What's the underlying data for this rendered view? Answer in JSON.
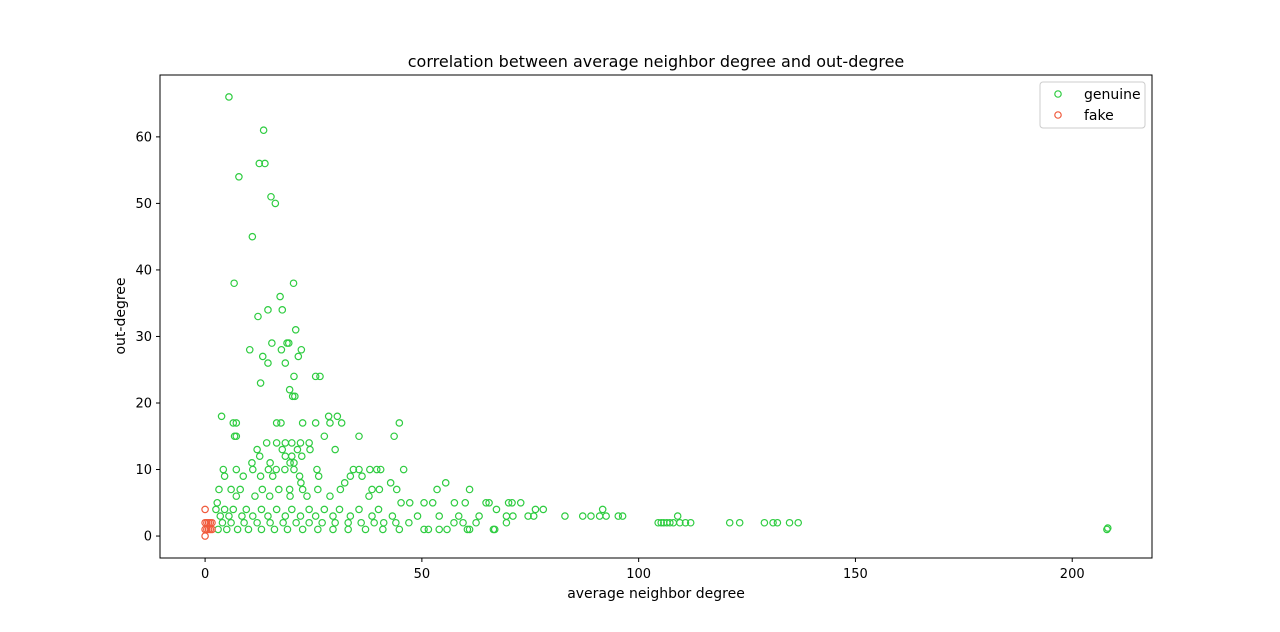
{
  "chart_data": {
    "type": "scatter",
    "title": "correlation between average neighbor degree and out-degree",
    "xlabel": "average neighbor degree",
    "ylabel": "out-degree",
    "xlim": [
      -10.4,
      218.4
    ],
    "ylim": [
      -3.3,
      69.3
    ],
    "xticks": [
      0,
      50,
      100,
      150,
      200
    ],
    "yticks": [
      0,
      10,
      20,
      30,
      40,
      50,
      60
    ],
    "grid": false,
    "legend_position": "top-right",
    "marker": "hollow-circle",
    "series": [
      {
        "name": "genuine",
        "color": "#2ecc40",
        "points": [
          [
            5.5,
            66
          ],
          [
            13.5,
            61
          ],
          [
            12.5,
            56
          ],
          [
            13.8,
            56
          ],
          [
            7.8,
            54
          ],
          [
            15.2,
            51
          ],
          [
            16.2,
            50
          ],
          [
            10.9,
            45
          ],
          [
            6.7,
            38
          ],
          [
            20.4,
            38
          ],
          [
            17.3,
            36
          ],
          [
            14.5,
            34
          ],
          [
            17.8,
            34
          ],
          [
            12.2,
            33
          ],
          [
            20.9,
            31
          ],
          [
            15.4,
            29
          ],
          [
            18.9,
            29
          ],
          [
            19.3,
            29
          ],
          [
            10.3,
            28
          ],
          [
            17.6,
            28
          ],
          [
            22.2,
            28
          ],
          [
            13.3,
            27
          ],
          [
            21.5,
            27
          ],
          [
            14.5,
            26
          ],
          [
            18.5,
            26
          ],
          [
            25.5,
            24
          ],
          [
            26.5,
            24
          ],
          [
            20.5,
            24
          ],
          [
            12.8,
            23
          ],
          [
            19.5,
            22
          ],
          [
            20.2,
            21
          ],
          [
            20.7,
            21
          ],
          [
            3.8,
            18
          ],
          [
            28.5,
            18
          ],
          [
            30.5,
            18
          ],
          [
            6.5,
            17
          ],
          [
            7.2,
            17
          ],
          [
            16.5,
            17
          ],
          [
            17.5,
            17
          ],
          [
            22.5,
            17
          ],
          [
            25.5,
            17
          ],
          [
            28.8,
            17
          ],
          [
            31.5,
            17
          ],
          [
            44.8,
            17
          ],
          [
            35.5,
            15
          ],
          [
            43.6,
            15
          ],
          [
            14.2,
            14
          ],
          [
            16.5,
            14
          ],
          [
            18.5,
            14
          ],
          [
            20,
            14
          ],
          [
            22,
            14
          ],
          [
            24,
            14
          ],
          [
            6.8,
            15
          ],
          [
            7.2,
            15
          ],
          [
            27.5,
            15
          ],
          [
            12,
            13
          ],
          [
            17.8,
            13
          ],
          [
            21.3,
            13
          ],
          [
            24.2,
            13
          ],
          [
            30,
            13
          ],
          [
            12.6,
            12
          ],
          [
            18.5,
            12
          ],
          [
            20,
            12
          ],
          [
            22.3,
            12
          ],
          [
            10.8,
            11
          ],
          [
            15,
            11
          ],
          [
            19.6,
            11
          ],
          [
            20.5,
            11
          ],
          [
            4.2,
            10
          ],
          [
            7.2,
            10
          ],
          [
            11,
            10
          ],
          [
            14.6,
            10
          ],
          [
            16.4,
            10
          ],
          [
            18.4,
            10
          ],
          [
            20.5,
            10
          ],
          [
            25.8,
            10
          ],
          [
            34.2,
            10
          ],
          [
            35.5,
            10
          ],
          [
            38,
            10
          ],
          [
            39.6,
            10
          ],
          [
            40.5,
            10
          ],
          [
            45.8,
            10
          ],
          [
            4.5,
            9
          ],
          [
            8.8,
            9
          ],
          [
            12.8,
            9
          ],
          [
            15.6,
            9
          ],
          [
            21.8,
            9
          ],
          [
            26.2,
            9
          ],
          [
            33.5,
            9
          ],
          [
            36.2,
            9
          ],
          [
            3.2,
            7
          ],
          [
            6,
            7
          ],
          [
            8.1,
            7
          ],
          [
            13.2,
            7
          ],
          [
            17,
            7
          ],
          [
            19.5,
            7
          ],
          [
            22.5,
            7
          ],
          [
            26,
            7
          ],
          [
            31.2,
            7
          ],
          [
            38.5,
            7
          ],
          [
            40.2,
            7
          ],
          [
            44.2,
            7
          ],
          [
            53.5,
            7
          ],
          [
            61,
            7
          ],
          [
            32.2,
            8
          ],
          [
            42.8,
            8
          ],
          [
            55.5,
            8
          ],
          [
            22.1,
            8
          ],
          [
            2.8,
            5
          ],
          [
            7.2,
            6
          ],
          [
            11.5,
            6
          ],
          [
            14.9,
            6
          ],
          [
            19.6,
            6
          ],
          [
            23.5,
            6
          ],
          [
            28.8,
            6
          ],
          [
            37.8,
            6
          ],
          [
            45.2,
            5
          ],
          [
            47.2,
            5
          ],
          [
            50.5,
            5
          ],
          [
            52.5,
            5
          ],
          [
            57.5,
            5
          ],
          [
            60,
            5
          ],
          [
            64.8,
            5
          ],
          [
            65.5,
            5
          ],
          [
            67.2,
            4
          ],
          [
            70,
            5
          ],
          [
            70.8,
            5
          ],
          [
            72.8,
            5
          ],
          [
            76.2,
            4
          ],
          [
            78,
            4
          ],
          [
            91.7,
            4
          ],
          [
            2.5,
            4
          ],
          [
            4.5,
            4
          ],
          [
            6.5,
            4
          ],
          [
            9.5,
            4
          ],
          [
            13,
            4
          ],
          [
            16.5,
            4
          ],
          [
            20,
            4
          ],
          [
            24,
            4
          ],
          [
            27.5,
            4
          ],
          [
            31,
            4
          ],
          [
            35.5,
            4
          ],
          [
            40,
            4
          ],
          [
            43.2,
            3
          ],
          [
            49,
            3
          ],
          [
            54,
            3
          ],
          [
            58.5,
            3
          ],
          [
            63.2,
            3
          ],
          [
            69.5,
            3
          ],
          [
            71,
            3
          ],
          [
            74.5,
            3
          ],
          [
            75.8,
            3
          ],
          [
            83,
            3
          ],
          [
            87.1,
            3
          ],
          [
            89,
            3
          ],
          [
            91,
            3
          ],
          [
            92.5,
            3
          ],
          [
            95.3,
            3
          ],
          [
            96.3,
            3
          ],
          [
            109,
            3
          ],
          [
            3.5,
            3
          ],
          [
            5.5,
            3
          ],
          [
            8.5,
            3
          ],
          [
            11,
            3
          ],
          [
            14.5,
            3
          ],
          [
            18.5,
            3
          ],
          [
            22,
            3
          ],
          [
            25.5,
            3
          ],
          [
            29.5,
            3
          ],
          [
            33.5,
            3
          ],
          [
            38.5,
            3
          ],
          [
            4,
            2
          ],
          [
            6,
            2
          ],
          [
            9,
            2
          ],
          [
            12,
            2
          ],
          [
            15,
            2
          ],
          [
            18,
            2
          ],
          [
            21,
            2
          ],
          [
            24,
            2
          ],
          [
            27,
            2
          ],
          [
            30,
            2
          ],
          [
            33,
            2
          ],
          [
            36,
            2
          ],
          [
            39,
            2
          ],
          [
            41.2,
            2
          ],
          [
            44,
            2
          ],
          [
            47,
            2
          ],
          [
            57.4,
            2
          ],
          [
            59.5,
            2
          ],
          [
            62.5,
            2
          ],
          [
            69.5,
            2
          ],
          [
            104.5,
            2
          ],
          [
            105.2,
            2
          ],
          [
            105.8,
            2
          ],
          [
            106.5,
            2
          ],
          [
            107.2,
            2
          ],
          [
            108,
            2
          ],
          [
            109.5,
            2
          ],
          [
            110.8,
            2
          ],
          [
            112,
            2
          ],
          [
            121,
            2
          ],
          [
            123.3,
            2
          ],
          [
            129,
            2
          ],
          [
            131,
            2
          ],
          [
            132,
            2
          ],
          [
            134.8,
            2
          ],
          [
            136.8,
            2
          ],
          [
            3,
            1
          ],
          [
            5,
            1
          ],
          [
            7.5,
            1
          ],
          [
            10,
            1
          ],
          [
            13,
            1
          ],
          [
            16,
            1
          ],
          [
            19,
            1
          ],
          [
            22.5,
            1
          ],
          [
            26,
            1
          ],
          [
            29.5,
            1
          ],
          [
            33,
            1
          ],
          [
            37,
            1
          ],
          [
            41,
            1
          ],
          [
            44.8,
            1
          ],
          [
            50.5,
            1
          ],
          [
            51.5,
            1
          ],
          [
            54,
            1
          ],
          [
            55.8,
            1
          ],
          [
            60.5,
            1
          ],
          [
            61,
            1
          ],
          [
            66.5,
            1
          ],
          [
            66.8,
            1
          ],
          [
            208,
            1
          ],
          [
            208.2,
            1.2
          ]
        ]
      },
      {
        "name": "fake",
        "color": "#f05a3c",
        "points": [
          [
            0,
            4
          ],
          [
            0,
            2
          ],
          [
            0.4,
            2
          ],
          [
            0.8,
            2
          ],
          [
            1.2,
            2
          ],
          [
            1.6,
            2
          ],
          [
            0,
            1
          ],
          [
            0.4,
            1
          ],
          [
            0.8,
            1
          ],
          [
            1.2,
            1
          ],
          [
            1.6,
            1
          ],
          [
            0,
            0
          ]
        ]
      }
    ]
  }
}
